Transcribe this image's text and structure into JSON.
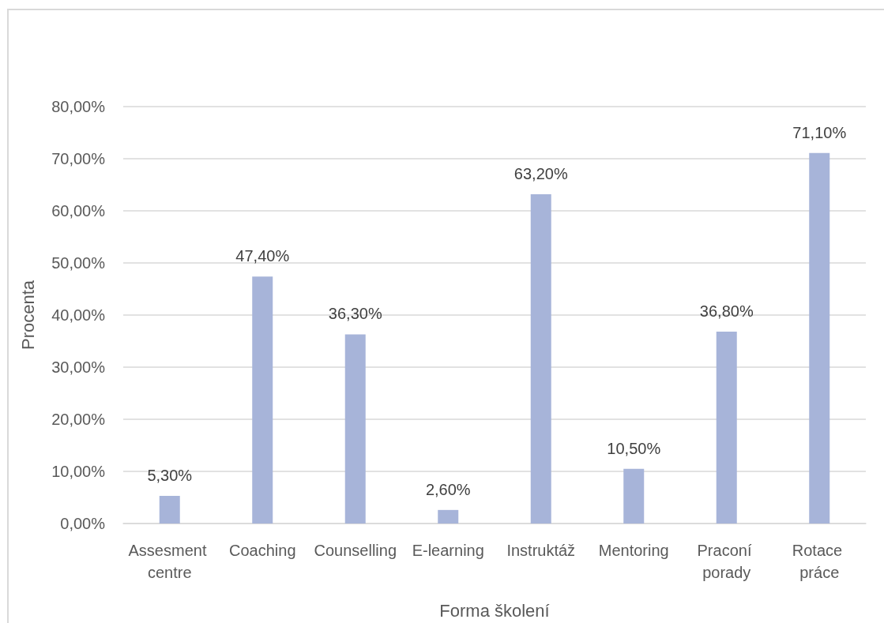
{
  "chart_data": {
    "type": "bar",
    "xlabel": "Forma školení",
    "ylabel": "Procenta",
    "categories": [
      "Assesment centre",
      "Coaching",
      "Counselling",
      "E-learning",
      "Instruktáž",
      "Mentoring",
      "Praconí porady",
      "Rotace práce"
    ],
    "values": [
      5.3,
      47.4,
      36.3,
      2.6,
      63.2,
      10.5,
      36.8,
      71.1
    ],
    "color": "#a7b4d9",
    "value_labels": [
      "5,30%",
      "47,40%",
      "36,30%",
      "2,60%",
      "63,20%",
      "10,50%",
      "36,80%",
      "71,10%"
    ],
    "ylim": [
      0,
      80
    ],
    "yticks": [
      {
        "value": 0,
        "label": "0,00%"
      },
      {
        "value": 10,
        "label": "10,00%"
      },
      {
        "value": 20,
        "label": "20,00%"
      },
      {
        "value": 30,
        "label": "30,00%"
      },
      {
        "value": 40,
        "label": "40,00%"
      },
      {
        "value": 50,
        "label": "50,00%"
      },
      {
        "value": 60,
        "label": "60,00%"
      },
      {
        "value": 70,
        "label": "70,00%"
      },
      {
        "value": 80,
        "label": "80,00%"
      }
    ],
    "grid": "y"
  }
}
